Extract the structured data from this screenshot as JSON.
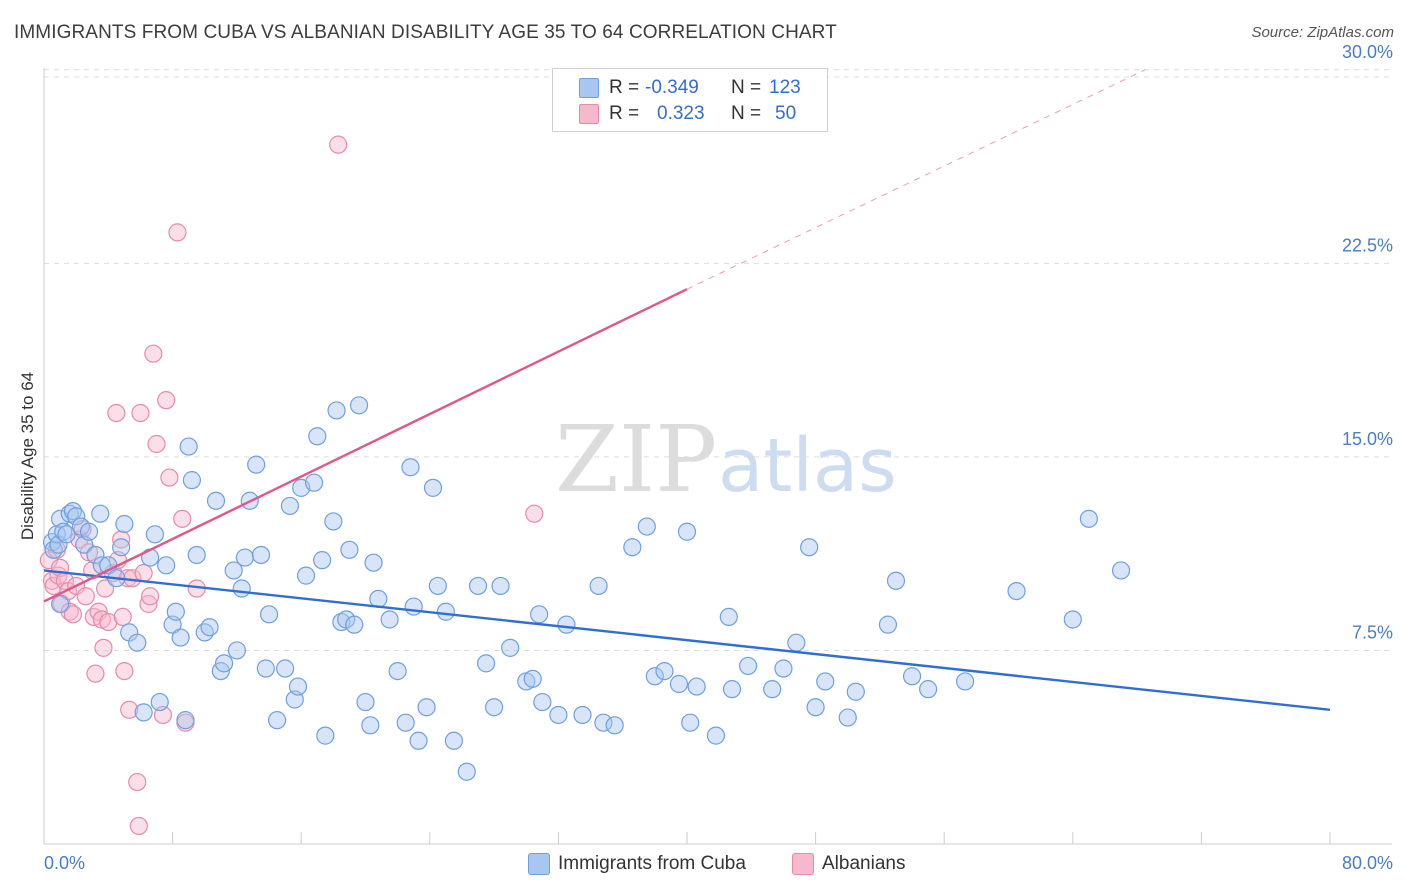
{
  "title": "IMMIGRANTS FROM CUBA VS ALBANIAN DISABILITY AGE 35 TO 64 CORRELATION CHART",
  "source": "Source: ZipAtlas.com",
  "watermark": {
    "zip": "ZIP",
    "atlas": "atlas"
  },
  "colors": {
    "blue_fill": "#a9c6f0",
    "blue_stroke": "#6f9fe0",
    "blue_line": "#2f6fd1",
    "pink_fill": "#f6b8cb",
    "pink_stroke": "#e88aa8",
    "pink_line": "#e0578a",
    "tick_text": "#4a7cc9",
    "grid": "#dcdcdc"
  },
  "legend": {
    "rows": [
      {
        "r_label": "R =",
        "r_value": "-0.349",
        "n_label": "N =",
        "n_value": "123",
        "color": "#a9c6f0"
      },
      {
        "r_label": "R =",
        "r_value": "0.323",
        "n_label": "N =",
        "n_value": "50",
        "color": "#f6b8cb"
      }
    ]
  },
  "bottom_legend": [
    {
      "label": "Immigrants from Cuba",
      "color": "#a9c6f0"
    },
    {
      "label": "Albanians",
      "color": "#f6b8cb"
    }
  ],
  "chart_data": {
    "type": "scatter",
    "title": "IMMIGRANTS FROM CUBA VS ALBANIAN DISABILITY AGE 35 TO 64 CORRELATION CHART",
    "ylabel": "Disability Age 35 to 64",
    "xlabel": "",
    "xlim": [
      0,
      80
    ],
    "ylim": [
      0,
      31
    ],
    "x_tick_labels": [
      "0.0%",
      "80.0%"
    ],
    "y_ticks": [
      7.5,
      15.0,
      22.5,
      30.0
    ],
    "y_tick_labels": [
      "7.5%",
      "15.0%",
      "22.5%",
      "30.0%"
    ],
    "grid": true,
    "legend_position": "top-center",
    "series": [
      {
        "name": "Immigrants from Cuba",
        "color": "#a9c6f0",
        "trend": {
          "x": [
            0,
            80
          ],
          "y": [
            10.6,
            5.2
          ],
          "dashed_to": null
        },
        "points": [
          [
            0.5,
            11.7
          ],
          [
            0.6,
            11.4
          ],
          [
            0.8,
            12.0
          ],
          [
            0.9,
            11.6
          ],
          [
            1.0,
            12.6
          ],
          [
            1.2,
            12.1
          ],
          [
            1.4,
            12.0
          ],
          [
            1.6,
            12.8
          ],
          [
            1.8,
            12.9
          ],
          [
            2.0,
            12.7
          ],
          [
            2.3,
            12.3
          ],
          [
            2.5,
            11.6
          ],
          [
            2.8,
            12.1
          ],
          [
            3.2,
            11.2
          ],
          [
            3.5,
            12.8
          ],
          [
            3.6,
            10.8
          ],
          [
            4.0,
            10.8
          ],
          [
            4.5,
            10.3
          ],
          [
            4.8,
            11.5
          ],
          [
            5.0,
            12.4
          ],
          [
            5.3,
            8.2
          ],
          [
            5.8,
            7.8
          ],
          [
            6.2,
            5.1
          ],
          [
            6.6,
            11.1
          ],
          [
            6.9,
            12.0
          ],
          [
            7.2,
            5.5
          ],
          [
            7.6,
            10.8
          ],
          [
            8.0,
            8.5
          ],
          [
            8.2,
            9.0
          ],
          [
            8.5,
            8.0
          ],
          [
            8.8,
            4.8
          ],
          [
            9.0,
            15.4
          ],
          [
            9.2,
            14.1
          ],
          [
            9.5,
            11.2
          ],
          [
            10.0,
            8.2
          ],
          [
            10.3,
            8.4
          ],
          [
            10.7,
            13.3
          ],
          [
            11.0,
            6.7
          ],
          [
            11.2,
            7.0
          ],
          [
            11.8,
            10.6
          ],
          [
            12.0,
            7.5
          ],
          [
            12.3,
            9.9
          ],
          [
            12.5,
            11.1
          ],
          [
            12.8,
            13.3
          ],
          [
            13.2,
            14.7
          ],
          [
            13.5,
            11.2
          ],
          [
            13.8,
            6.8
          ],
          [
            14.0,
            8.9
          ],
          [
            14.5,
            4.8
          ],
          [
            15.0,
            6.8
          ],
          [
            15.3,
            13.1
          ],
          [
            15.6,
            5.6
          ],
          [
            15.8,
            6.1
          ],
          [
            16.0,
            13.8
          ],
          [
            16.3,
            10.4
          ],
          [
            16.8,
            14.0
          ],
          [
            17.0,
            15.8
          ],
          [
            17.3,
            11.0
          ],
          [
            17.5,
            4.2
          ],
          [
            18.0,
            12.5
          ],
          [
            18.2,
            16.8
          ],
          [
            18.5,
            8.6
          ],
          [
            18.8,
            8.7
          ],
          [
            19.0,
            11.4
          ],
          [
            19.3,
            8.5
          ],
          [
            19.6,
            17.0
          ],
          [
            20.0,
            5.5
          ],
          [
            20.3,
            4.6
          ],
          [
            20.5,
            10.9
          ],
          [
            20.8,
            9.5
          ],
          [
            21.5,
            8.7
          ],
          [
            22.0,
            6.7
          ],
          [
            22.5,
            4.7
          ],
          [
            22.8,
            14.6
          ],
          [
            23.0,
            9.2
          ],
          [
            23.3,
            4.0
          ],
          [
            23.8,
            5.3
          ],
          [
            24.2,
            13.8
          ],
          [
            24.5,
            10.0
          ],
          [
            25.0,
            9.0
          ],
          [
            25.5,
            4.0
          ],
          [
            26.3,
            2.8
          ],
          [
            27.0,
            10.0
          ],
          [
            27.5,
            7.0
          ],
          [
            28.0,
            5.3
          ],
          [
            28.4,
            10.0
          ],
          [
            29.0,
            7.6
          ],
          [
            30.0,
            6.3
          ],
          [
            30.4,
            6.4
          ],
          [
            30.8,
            8.9
          ],
          [
            31.0,
            5.5
          ],
          [
            32.0,
            5.0
          ],
          [
            32.5,
            8.5
          ],
          [
            33.5,
            5.0
          ],
          [
            34.5,
            10.0
          ],
          [
            34.8,
            4.7
          ],
          [
            35.5,
            4.6
          ],
          [
            36.6,
            11.5
          ],
          [
            37.5,
            12.3
          ],
          [
            38.0,
            6.5
          ],
          [
            38.6,
            6.7
          ],
          [
            39.5,
            6.2
          ],
          [
            40.0,
            12.1
          ],
          [
            40.2,
            4.7
          ],
          [
            40.6,
            6.1
          ],
          [
            41.8,
            4.2
          ],
          [
            42.6,
            8.8
          ],
          [
            42.8,
            6.0
          ],
          [
            43.8,
            6.9
          ],
          [
            45.3,
            6.0
          ],
          [
            46.0,
            6.8
          ],
          [
            46.8,
            7.8
          ],
          [
            47.6,
            11.5
          ],
          [
            48.0,
            5.3
          ],
          [
            48.6,
            6.3
          ],
          [
            50.0,
            4.9
          ],
          [
            50.5,
            5.9
          ],
          [
            52.5,
            8.5
          ],
          [
            53.0,
            10.2
          ],
          [
            54.0,
            6.5
          ],
          [
            55.0,
            6.0
          ],
          [
            57.3,
            6.3
          ],
          [
            60.5,
            9.8
          ],
          [
            64.0,
            8.7
          ],
          [
            65.0,
            12.6
          ],
          [
            67.0,
            10.6
          ],
          [
            1.0,
            9.3
          ]
        ]
      },
      {
        "name": "Albanians",
        "color": "#f6b8cb",
        "trend": {
          "x": [
            0,
            40
          ],
          "y": [
            9.4,
            21.5
          ],
          "dashed_to": [
            68.5,
            30.0
          ]
        },
        "points": [
          [
            0.3,
            11.0
          ],
          [
            0.5,
            10.2
          ],
          [
            0.6,
            10.0
          ],
          [
            0.8,
            11.4
          ],
          [
            0.9,
            10.4
          ],
          [
            1.0,
            10.7
          ],
          [
            1.1,
            9.3
          ],
          [
            1.3,
            10.2
          ],
          [
            1.5,
            9.8
          ],
          [
            1.6,
            9.0
          ],
          [
            1.8,
            8.9
          ],
          [
            2.0,
            10.0
          ],
          [
            2.2,
            11.8
          ],
          [
            2.4,
            12.2
          ],
          [
            2.6,
            9.6
          ],
          [
            2.8,
            11.3
          ],
          [
            3.0,
            10.6
          ],
          [
            3.1,
            8.8
          ],
          [
            3.2,
            6.6
          ],
          [
            3.4,
            9.0
          ],
          [
            3.6,
            8.7
          ],
          [
            3.7,
            7.6
          ],
          [
            3.8,
            9.9
          ],
          [
            4.0,
            8.6
          ],
          [
            4.3,
            10.5
          ],
          [
            4.5,
            16.7
          ],
          [
            4.6,
            11.0
          ],
          [
            4.8,
            11.8
          ],
          [
            4.9,
            8.8
          ],
          [
            5.0,
            6.7
          ],
          [
            5.2,
            10.3
          ],
          [
            5.3,
            5.2
          ],
          [
            5.5,
            10.3
          ],
          [
            5.8,
            2.4
          ],
          [
            5.9,
            0.7
          ],
          [
            6.0,
            16.7
          ],
          [
            6.2,
            10.5
          ],
          [
            6.5,
            9.3
          ],
          [
            6.6,
            9.6
          ],
          [
            6.8,
            19.0
          ],
          [
            7.0,
            15.5
          ],
          [
            7.4,
            5.0
          ],
          [
            7.6,
            17.2
          ],
          [
            7.8,
            14.2
          ],
          [
            8.3,
            23.7
          ],
          [
            8.6,
            12.6
          ],
          [
            8.8,
            4.7
          ],
          [
            9.5,
            9.9
          ],
          [
            18.3,
            27.1
          ],
          [
            30.5,
            12.8
          ]
        ]
      }
    ]
  }
}
